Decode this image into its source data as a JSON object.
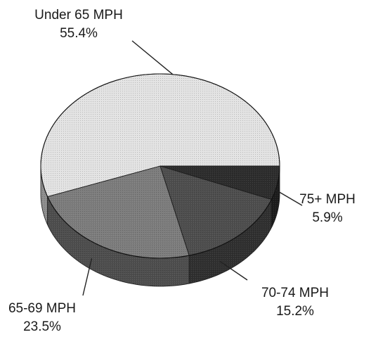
{
  "chart_data": {
    "type": "pie",
    "style": "3d",
    "legend": "none",
    "slices": [
      {
        "label": "Under 65 MPH",
        "value": 55.4,
        "value_label": "55.4%",
        "color": "#e3e3e3"
      },
      {
        "label": "75+ MPH",
        "value": 5.9,
        "value_label": "5.9%",
        "color": "#2d2d2d"
      },
      {
        "label": "70-74 MPH",
        "value": 15.2,
        "value_label": "15.2%",
        "color": "#4e4e4e"
      },
      {
        "label": "65-69 MPH",
        "value": 23.5,
        "value_label": "23.5%",
        "color": "#7d7d7d"
      }
    ]
  }
}
